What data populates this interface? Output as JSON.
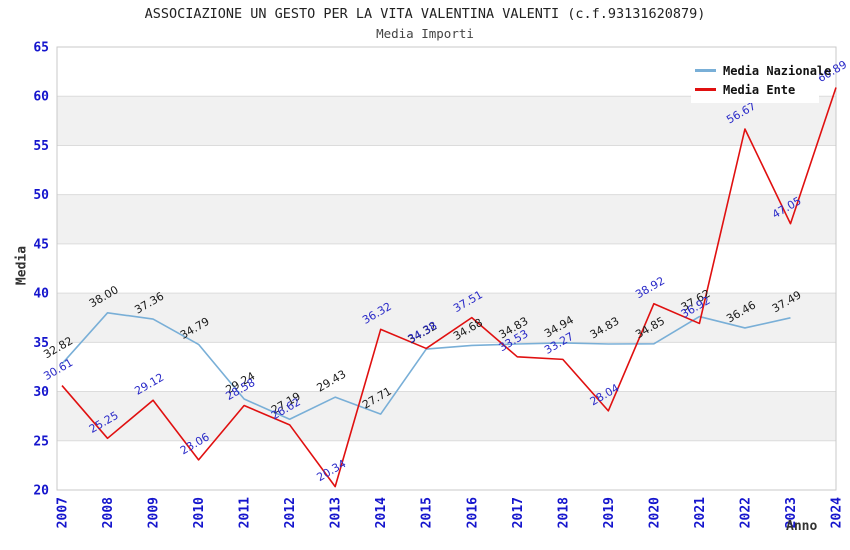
{
  "header": {
    "title": "ASSOCIAZIONE UN GESTO PER LA VITA VALENTINA VALENTI (c.f.93131620879)",
    "subtitle": "Media Importi"
  },
  "axes": {
    "y_label": "Media",
    "x_label": "Anno"
  },
  "colors": {
    "tick_blue": "#1515cd",
    "nazionale_line": "#79afd7",
    "ente_line": "#e01010",
    "nazionale_label": "#1a1a1a",
    "ente_label": "#2a2ac8",
    "band_gray": "#f1f1f1",
    "gridline": "#dcdcdc",
    "frame": "#c9c9c9"
  },
  "chart_data": {
    "type": "line",
    "title": "ASSOCIAZIONE UN GESTO PER LA VITA VALENTINA VALENTI (c.f.93131620879)",
    "subtitle": "Media Importi",
    "xlabel": "Anno",
    "ylabel": "Media",
    "ylim": [
      20,
      65
    ],
    "ytick_step": 5,
    "yticks": [
      20,
      25,
      30,
      35,
      40,
      45,
      50,
      55,
      60,
      65
    ],
    "grid": true,
    "bands": "alternating gray every 5 units (25-30, 35-40, 45-50, 55-60)",
    "legend_position": "top-right",
    "categories": [
      "2007",
      "2008",
      "2009",
      "2010",
      "2011",
      "2012",
      "2013",
      "2014",
      "2015",
      "2016",
      "2017",
      "2018",
      "2019",
      "2020",
      "2021",
      "2022",
      "2023",
      "2024"
    ],
    "series": [
      {
        "name": "Media Nazionale",
        "color": "#79afd7",
        "label_color": "#1a1a1a",
        "values": [
          32.82,
          38.0,
          37.36,
          34.79,
          29.24,
          27.19,
          29.43,
          27.71,
          34.32,
          34.68,
          34.83,
          34.94,
          34.83,
          34.85,
          37.62,
          36.46,
          37.49,
          null
        ]
      },
      {
        "name": "Media Ente",
        "color": "#e01010",
        "label_color": "#2a2ac8",
        "values": [
          30.61,
          25.25,
          29.12,
          23.06,
          28.58,
          26.62,
          20.34,
          36.32,
          34.38,
          37.51,
          33.53,
          33.27,
          28.04,
          38.92,
          36.92,
          56.67,
          47.05,
          60.89
        ]
      }
    ]
  }
}
